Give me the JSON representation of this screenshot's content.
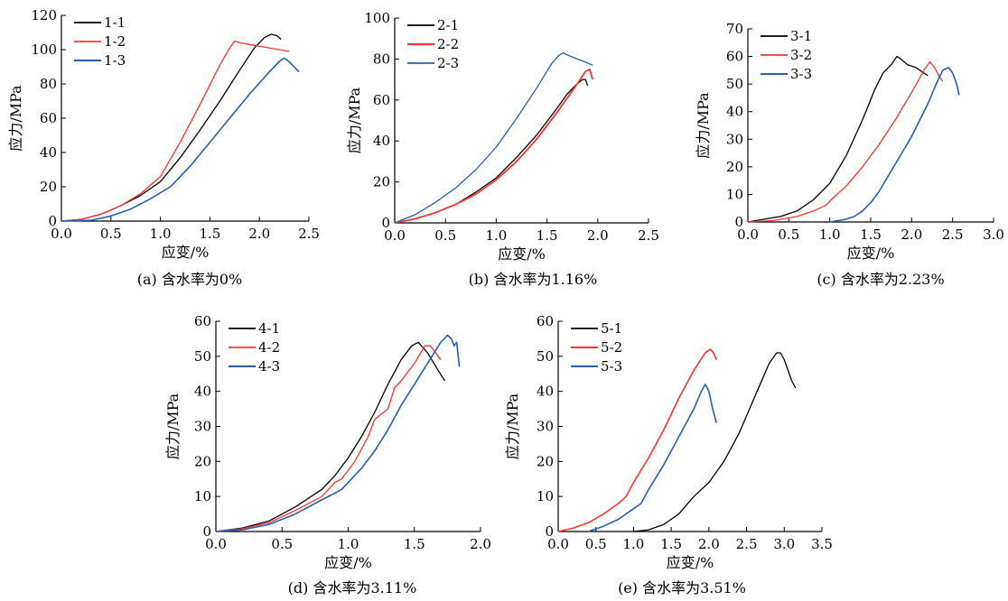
{
  "chart_data": [
    {
      "type": "line",
      "caption": "(a) 含水率为0%",
      "xlabel": "应变/%",
      "ylabel": "应力/MPa",
      "xlim": [
        0,
        2.5
      ],
      "ylim": [
        0,
        120
      ],
      "xticks": [
        "0.0",
        "0.5",
        "1.0",
        "1.5",
        "2.0",
        "2.5"
      ],
      "yticks": [
        "0",
        "20",
        "40",
        "60",
        "80",
        "100",
        "120"
      ],
      "legend_position": "top-left",
      "series": [
        {
          "name": "1-1",
          "color": "#000000",
          "width": 1.3,
          "x": [
            0,
            0.2,
            0.4,
            0.6,
            0.8,
            1.0,
            1.2,
            1.4,
            1.6,
            1.8,
            1.95,
            2.05,
            2.12,
            2.18,
            2.22
          ],
          "y": [
            0,
            1,
            4,
            9,
            15,
            23,
            37,
            53,
            70,
            88,
            101,
            107,
            109,
            108,
            106
          ]
        },
        {
          "name": "1-2",
          "color": "#ff3333",
          "width": 1.3,
          "x": [
            0,
            0.2,
            0.4,
            0.6,
            0.8,
            1.0,
            1.2,
            1.4,
            1.6,
            1.7,
            1.75,
            1.8,
            1.9,
            2.0,
            2.1,
            2.2,
            2.3
          ],
          "y": [
            0,
            1,
            4,
            9,
            16,
            26,
            46,
            68,
            91,
            101,
            105,
            104,
            103,
            102,
            101,
            100,
            99
          ]
        },
        {
          "name": "1-3",
          "color": "#2b5cb0",
          "width": 1.6,
          "x": [
            0,
            0.3,
            0.5,
            0.7,
            0.9,
            1.1,
            1.3,
            1.5,
            1.7,
            1.9,
            2.1,
            2.2,
            2.25,
            2.3,
            2.35,
            2.4
          ],
          "y": [
            0,
            0.5,
            3,
            7,
            13,
            20,
            32,
            46,
            60,
            74,
            87,
            93,
            95,
            93,
            90,
            87
          ]
        }
      ]
    },
    {
      "type": "line",
      "caption": "(b) 含水率为1.16%",
      "xlabel": "应变/%",
      "ylabel": "应力/MPa",
      "xlim": [
        0,
        2.5
      ],
      "ylim": [
        0,
        100
      ],
      "xticks": [
        "0.0",
        "0.5",
        "1.0",
        "1.5",
        "2.0",
        "2.5"
      ],
      "yticks": [
        "0",
        "20",
        "40",
        "60",
        "80",
        "100"
      ],
      "legend_position": "top-left",
      "series": [
        {
          "name": "2-1",
          "color": "#000000",
          "width": 1.3,
          "x": [
            0,
            0.2,
            0.4,
            0.6,
            0.8,
            1.0,
            1.2,
            1.4,
            1.6,
            1.7,
            1.8,
            1.85,
            1.88,
            1.9
          ],
          "y": [
            0,
            2,
            5,
            9,
            15,
            22,
            32,
            43,
            56,
            63,
            68,
            70,
            70,
            67
          ]
        },
        {
          "name": "2-2",
          "color": "#ff3333",
          "width": 1.8,
          "x": [
            0,
            0.2,
            0.4,
            0.6,
            0.8,
            1.0,
            1.2,
            1.4,
            1.6,
            1.8,
            1.88,
            1.92,
            1.95
          ],
          "y": [
            0,
            2,
            5,
            9,
            14,
            21,
            30,
            41,
            54,
            68,
            74,
            75,
            70
          ]
        },
        {
          "name": "2-3",
          "color": "#2b5cb0",
          "width": 1.3,
          "x": [
            0,
            0.2,
            0.4,
            0.6,
            0.8,
            1.0,
            1.2,
            1.4,
            1.55,
            1.62,
            1.66,
            1.7,
            1.8,
            1.9,
            1.95
          ],
          "y": [
            0,
            4,
            10,
            17,
            26,
            37,
            51,
            66,
            78,
            82,
            83,
            82,
            80,
            78,
            77
          ]
        }
      ]
    },
    {
      "type": "line",
      "caption": "(c) 含水率为2.23%",
      "xlabel": "应变/%",
      "ylabel": "应力/MPa",
      "xlim": [
        0,
        3.0
      ],
      "ylim": [
        0,
        70
      ],
      "xticks": [
        "0.0",
        "0.5",
        "1.0",
        "1.5",
        "2.0",
        "2.5",
        "3.0"
      ],
      "yticks": [
        "0",
        "10",
        "20",
        "30",
        "40",
        "50",
        "60",
        "70"
      ],
      "legend_position": "top-left",
      "series": [
        {
          "name": "3-1",
          "color": "#000000",
          "width": 1.3,
          "x": [
            0,
            0.2,
            0.4,
            0.6,
            0.8,
            1.0,
            1.2,
            1.4,
            1.55,
            1.65,
            1.75,
            1.82,
            1.87,
            1.95,
            2.05,
            2.15,
            2.2
          ],
          "y": [
            0,
            1,
            2,
            4,
            8,
            14,
            24,
            37,
            48,
            54,
            57,
            60,
            59,
            57,
            56,
            54,
            53
          ]
        },
        {
          "name": "3-2",
          "color": "#ff3333",
          "width": 1.3,
          "x": [
            0,
            0.3,
            0.6,
            0.8,
            0.95,
            1.05,
            1.2,
            1.4,
            1.6,
            1.8,
            2.0,
            2.15,
            2.22,
            2.28,
            2.33,
            2.38
          ],
          "y": [
            0,
            0.5,
            2,
            4,
            6,
            9,
            13,
            20,
            28,
            37,
            47,
            55,
            58,
            56,
            53,
            51
          ]
        },
        {
          "name": "3-3",
          "color": "#2b5cb0",
          "width": 1.6,
          "x": [
            1.0,
            1.1,
            1.2,
            1.3,
            1.4,
            1.5,
            1.6,
            1.7,
            1.8,
            1.9,
            2.0,
            2.1,
            2.2,
            2.3,
            2.38,
            2.45,
            2.5,
            2.55,
            2.58
          ],
          "y": [
            0,
            0.5,
            1,
            2,
            4,
            7,
            11,
            16,
            21,
            26,
            31,
            37,
            43,
            50,
            55,
            56,
            54,
            50,
            46
          ]
        }
      ]
    },
    {
      "type": "line",
      "caption": "(d) 含水率为3.11%",
      "xlabel": "应变/%",
      "ylabel": "应力/MPa",
      "xlim": [
        0,
        2.0
      ],
      "ylim": [
        0,
        60
      ],
      "xticks": [
        "0.0",
        "0.5",
        "1.0",
        "1.5",
        "2.0"
      ],
      "yticks": [
        "0",
        "10",
        "20",
        "30",
        "40",
        "50",
        "60"
      ],
      "legend_position": "top-left",
      "series": [
        {
          "name": "4-1",
          "color": "#000000",
          "width": 1.3,
          "x": [
            0,
            0.2,
            0.4,
            0.6,
            0.8,
            0.9,
            1.0,
            1.1,
            1.2,
            1.3,
            1.4,
            1.48,
            1.53,
            1.6,
            1.68,
            1.73
          ],
          "y": [
            0,
            1,
            3,
            7,
            12,
            16,
            21,
            27,
            34,
            42,
            49,
            53,
            54,
            51,
            46,
            43
          ]
        },
        {
          "name": "4-2",
          "color": "#ff3333",
          "width": 1.3,
          "x": [
            0,
            0.2,
            0.4,
            0.6,
            0.8,
            0.9,
            0.95,
            1.05,
            1.15,
            1.2,
            1.3,
            1.35,
            1.4,
            1.5,
            1.58,
            1.62,
            1.66,
            1.7
          ],
          "y": [
            0,
            0.8,
            2.5,
            6,
            10,
            14,
            15,
            20,
            27,
            32,
            35,
            41,
            43,
            48,
            53,
            53,
            51,
            49
          ]
        },
        {
          "name": "4-3",
          "color": "#2b5cb0",
          "width": 1.6,
          "x": [
            0,
            0.2,
            0.4,
            0.6,
            0.8,
            0.95,
            1.0,
            1.1,
            1.2,
            1.3,
            1.4,
            1.5,
            1.6,
            1.7,
            1.75,
            1.78,
            1.8,
            1.82,
            1.84
          ],
          "y": [
            0,
            0.5,
            2,
            5,
            9,
            12,
            14,
            18,
            23,
            29,
            36,
            42,
            48,
            54,
            56,
            55,
            53,
            54,
            47
          ]
        }
      ]
    },
    {
      "type": "line",
      "caption": "(e) 含水率为3.51%",
      "xlabel": "应变/%",
      "ylabel": "应力/MPa",
      "xlim": [
        0,
        3.5
      ],
      "ylim": [
        0,
        60
      ],
      "xticks": [
        "0.0",
        "0.5",
        "1.0",
        "1.5",
        "2.0",
        "2.5",
        "3.0",
        "3.5"
      ],
      "yticks": [
        "0",
        "10",
        "20",
        "30",
        "40",
        "50",
        "60"
      ],
      "legend_position": "top-left",
      "series": [
        {
          "name": "5-1",
          "color": "#000000",
          "width": 1.3,
          "x": [
            1.0,
            1.2,
            1.4,
            1.6,
            1.8,
            2.0,
            2.2,
            2.4,
            2.6,
            2.8,
            2.9,
            2.95,
            3.0,
            3.05,
            3.1,
            3.15
          ],
          "y": [
            0,
            0.5,
            2,
            5,
            10,
            14,
            20,
            28,
            38,
            48,
            51,
            51,
            49,
            46,
            43,
            41
          ]
        },
        {
          "name": "5-2",
          "color": "#ff3333",
          "width": 1.6,
          "x": [
            0,
            0.2,
            0.4,
            0.6,
            0.8,
            0.9,
            1.0,
            1.2,
            1.4,
            1.6,
            1.8,
            1.95,
            2.02,
            2.06,
            2.1
          ],
          "y": [
            0,
            1,
            2.5,
            5,
            8,
            10,
            14,
            21,
            29,
            38,
            46,
            51,
            52,
            51,
            49
          ]
        },
        {
          "name": "5-3",
          "color": "#2b5cb0",
          "width": 1.6,
          "x": [
            0.4,
            0.6,
            0.8,
            1.0,
            1.1,
            1.2,
            1.4,
            1.6,
            1.8,
            1.9,
            1.95,
            2.0,
            2.05,
            2.1
          ],
          "y": [
            0,
            1.5,
            3.5,
            6.5,
            8,
            12,
            19,
            27,
            35,
            40,
            42,
            40,
            35,
            31
          ]
        }
      ]
    }
  ]
}
